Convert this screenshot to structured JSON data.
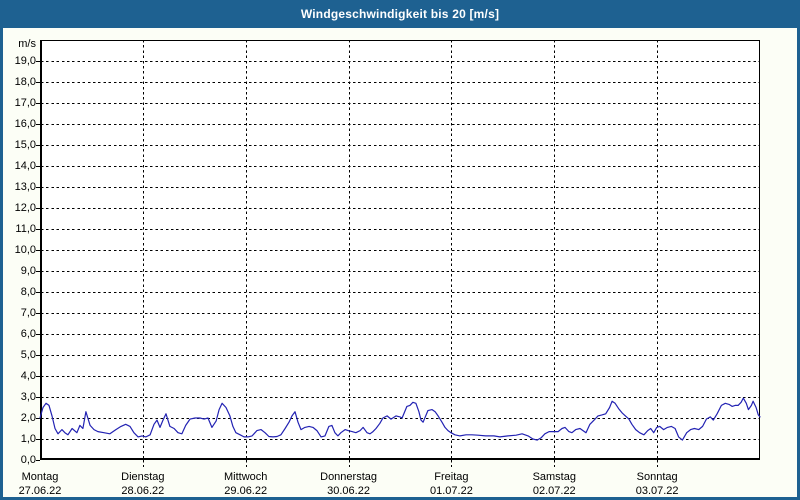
{
  "window": {
    "title": "Windgeschwindigkeit bis 20 [m/s]"
  },
  "colors": {
    "titlebar_bg": "#1e6191",
    "titlebar_text": "#ffffff",
    "frame": "#1e6191",
    "page_bg": "#fcfef6",
    "plot_bg": "#ffffff",
    "grid": "#000000",
    "axis": "#000000",
    "line": "#2323b3",
    "label_text": "#000000"
  },
  "y_axis": {
    "unit": "m/s",
    "min": 0,
    "max": 20,
    "tick_step": 1,
    "ticks": [
      {
        "value": 19,
        "label": "19,0"
      },
      {
        "value": 18,
        "label": "18,0"
      },
      {
        "value": 17,
        "label": "17,0"
      },
      {
        "value": 16,
        "label": "16,0"
      },
      {
        "value": 15,
        "label": "15,0"
      },
      {
        "value": 14,
        "label": "14,0"
      },
      {
        "value": 13,
        "label": "13,0"
      },
      {
        "value": 12,
        "label": "12,0"
      },
      {
        "value": 11,
        "label": "11,0"
      },
      {
        "value": 10,
        "label": "10,0"
      },
      {
        "value": 9,
        "label": "9,0"
      },
      {
        "value": 8,
        "label": "8,0"
      },
      {
        "value": 7,
        "label": "7,0"
      },
      {
        "value": 6,
        "label": "6,0"
      },
      {
        "value": 5,
        "label": "5,0"
      },
      {
        "value": 4,
        "label": "4,0"
      },
      {
        "value": 3,
        "label": "3,0"
      },
      {
        "value": 2,
        "label": "2,0"
      },
      {
        "value": 1,
        "label": "1,0"
      },
      {
        "value": 0,
        "label": "0,0"
      }
    ]
  },
  "x_axis": {
    "days": [
      {
        "name": "Montag",
        "date": "27.06.22"
      },
      {
        "name": "Dienstag",
        "date": "28.06.22"
      },
      {
        "name": "Mittwoch",
        "date": "29.06.22"
      },
      {
        "name": "Donnerstag",
        "date": "30.06.22"
      },
      {
        "name": "Freitag",
        "date": "01.07.22"
      },
      {
        "name": "Samstag",
        "date": "02.07.22"
      },
      {
        "name": "Sonntag",
        "date": "03.07.22"
      }
    ]
  },
  "chart_data": {
    "type": "line",
    "title": "Windgeschwindigkeit bis 20 [m/s]",
    "series_name": "Windgeschwindigkeit",
    "ylabel": "m/s",
    "ylim": [
      0,
      20
    ],
    "x_unit": "hours since Mon 27.06.22 00:00",
    "x_range": [
      0,
      168
    ],
    "grid": "dashed black, 1 m/s horizontal steps, vertical line per day",
    "legend": "none",
    "points": [
      [
        0,
        2.0
      ],
      [
        0.7,
        2.5
      ],
      [
        1.4,
        2.7
      ],
      [
        2.1,
        2.6
      ],
      [
        2.8,
        2.1
      ],
      [
        3.5,
        1.5
      ],
      [
        4.2,
        1.25
      ],
      [
        5.1,
        1.45
      ],
      [
        5.8,
        1.3
      ],
      [
        6.5,
        1.2
      ],
      [
        7.5,
        1.5
      ],
      [
        8.6,
        1.3
      ],
      [
        9.3,
        1.65
      ],
      [
        10,
        1.5
      ],
      [
        10.7,
        2.3
      ],
      [
        11.7,
        1.65
      ],
      [
        12.6,
        1.45
      ],
      [
        13.5,
        1.35
      ],
      [
        14.9,
        1.3
      ],
      [
        16.3,
        1.25
      ],
      [
        17.7,
        1.45
      ],
      [
        18.9,
        1.6
      ],
      [
        20,
        1.7
      ],
      [
        21,
        1.6
      ],
      [
        21.9,
        1.3
      ],
      [
        22.9,
        1.1
      ],
      [
        23.8,
        1.15
      ],
      [
        24.7,
        1.1
      ],
      [
        25.7,
        1.2
      ],
      [
        26.6,
        1.7
      ],
      [
        27.3,
        1.9
      ],
      [
        28,
        1.55
      ],
      [
        28.7,
        1.9
      ],
      [
        29.4,
        2.2
      ],
      [
        30.3,
        1.6
      ],
      [
        31.3,
        1.5
      ],
      [
        32.2,
        1.3
      ],
      [
        33.1,
        1.25
      ],
      [
        34,
        1.65
      ],
      [
        35,
        1.95
      ],
      [
        36.2,
        2.0
      ],
      [
        37.3,
        2.0
      ],
      [
        38.3,
        1.95
      ],
      [
        39.2,
        2.0
      ],
      [
        40.1,
        1.55
      ],
      [
        41.1,
        1.85
      ],
      [
        41.8,
        2.4
      ],
      [
        42.5,
        2.7
      ],
      [
        43.4,
        2.5
      ],
      [
        44.3,
        2.1
      ],
      [
        45,
        1.6
      ],
      [
        45.7,
        1.3
      ],
      [
        46.7,
        1.2
      ],
      [
        47.6,
        1.1
      ],
      [
        48.5,
        1.1
      ],
      [
        49.5,
        1.15
      ],
      [
        50.6,
        1.4
      ],
      [
        51.6,
        1.45
      ],
      [
        52.5,
        1.3
      ],
      [
        53.4,
        1.12
      ],
      [
        54.4,
        1.1
      ],
      [
        55.3,
        1.12
      ],
      [
        56.2,
        1.2
      ],
      [
        57.2,
        1.5
      ],
      [
        58.1,
        1.8
      ],
      [
        58.8,
        2.1
      ],
      [
        59.5,
        2.3
      ],
      [
        60.2,
        1.8
      ],
      [
        60.9,
        1.45
      ],
      [
        61.8,
        1.55
      ],
      [
        62.8,
        1.6
      ],
      [
        63.7,
        1.55
      ],
      [
        64.6,
        1.4
      ],
      [
        65.6,
        1.1
      ],
      [
        66.5,
        1.15
      ],
      [
        67.4,
        1.6
      ],
      [
        68.1,
        1.65
      ],
      [
        68.8,
        1.3
      ],
      [
        69.5,
        1.15
      ],
      [
        70.2,
        1.3
      ],
      [
        71.2,
        1.45
      ],
      [
        71.9,
        1.4
      ],
      [
        72.8,
        1.35
      ],
      [
        73.7,
        1.3
      ],
      [
        74.7,
        1.4
      ],
      [
        75.4,
        1.55
      ],
      [
        76.3,
        1.3
      ],
      [
        77,
        1.25
      ],
      [
        77.7,
        1.35
      ],
      [
        78.4,
        1.5
      ],
      [
        79.3,
        1.75
      ],
      [
        80,
        2.0
      ],
      [
        81,
        2.1
      ],
      [
        81.9,
        1.95
      ],
      [
        83.1,
        2.1
      ],
      [
        84,
        2.05
      ],
      [
        84.5,
        2.0
      ],
      [
        85.6,
        2.55
      ],
      [
        86.3,
        2.6
      ],
      [
        87,
        2.75
      ],
      [
        87.7,
        2.7
      ],
      [
        88.4,
        2.3
      ],
      [
        88.9,
        1.9
      ],
      [
        89.4,
        1.8
      ],
      [
        90.5,
        2.35
      ],
      [
        91.5,
        2.4
      ],
      [
        92.2,
        2.3
      ],
      [
        92.9,
        2.1
      ],
      [
        93.8,
        1.8
      ],
      [
        94.5,
        1.55
      ],
      [
        95.2,
        1.4
      ],
      [
        95.9,
        1.3
      ],
      [
        96.8,
        1.2
      ],
      [
        98,
        1.15
      ],
      [
        99.4,
        1.2
      ],
      [
        100.8,
        1.2
      ],
      [
        102.2,
        1.18
      ],
      [
        104,
        1.15
      ],
      [
        105.9,
        1.15
      ],
      [
        107.3,
        1.1
      ],
      [
        109.2,
        1.15
      ],
      [
        111.1,
        1.18
      ],
      [
        112.5,
        1.25
      ],
      [
        113.9,
        1.15
      ],
      [
        115,
        1.0
      ],
      [
        116,
        0.95
      ],
      [
        116.9,
        1.05
      ],
      [
        117.8,
        1.25
      ],
      [
        118.8,
        1.35
      ],
      [
        119.9,
        1.35
      ],
      [
        120.9,
        1.35
      ],
      [
        121.8,
        1.5
      ],
      [
        122.5,
        1.55
      ],
      [
        123.4,
        1.35
      ],
      [
        124.1,
        1.3
      ],
      [
        125,
        1.45
      ],
      [
        126,
        1.5
      ],
      [
        126.7,
        1.4
      ],
      [
        127.4,
        1.3
      ],
      [
        128.3,
        1.7
      ],
      [
        129.3,
        1.9
      ],
      [
        130.2,
        2.1
      ],
      [
        131.1,
        2.15
      ],
      [
        132,
        2.2
      ],
      [
        132.9,
        2.5
      ],
      [
        133.5,
        2.8
      ],
      [
        134.2,
        2.7
      ],
      [
        135,
        2.45
      ],
      [
        135.8,
        2.25
      ],
      [
        136.6,
        2.1
      ],
      [
        137.4,
        1.95
      ],
      [
        138.1,
        1.7
      ],
      [
        139,
        1.45
      ],
      [
        139.9,
        1.3
      ],
      [
        140.9,
        1.2
      ],
      [
        141.8,
        1.4
      ],
      [
        142.5,
        1.5
      ],
      [
        143.2,
        1.3
      ],
      [
        143.9,
        1.55
      ],
      [
        144.6,
        1.6
      ],
      [
        145.5,
        1.45
      ],
      [
        146.4,
        1.55
      ],
      [
        147.3,
        1.6
      ],
      [
        148.2,
        1.5
      ],
      [
        149,
        1.1
      ],
      [
        149.9,
        0.95
      ],
      [
        150.9,
        1.3
      ],
      [
        151.8,
        1.45
      ],
      [
        152.7,
        1.5
      ],
      [
        153.7,
        1.45
      ],
      [
        154.6,
        1.6
      ],
      [
        155.5,
        1.95
      ],
      [
        156.4,
        2.05
      ],
      [
        157.1,
        1.9
      ],
      [
        158,
        2.2
      ],
      [
        159,
        2.6
      ],
      [
        159.9,
        2.7
      ],
      [
        160.8,
        2.65
      ],
      [
        161.5,
        2.55
      ],
      [
        162.2,
        2.6
      ],
      [
        162.9,
        2.6
      ],
      [
        163.6,
        2.75
      ],
      [
        164.1,
        2.95
      ],
      [
        164.8,
        2.7
      ],
      [
        165.3,
        2.4
      ],
      [
        166,
        2.6
      ],
      [
        166.4,
        2.8
      ],
      [
        167.1,
        2.5
      ],
      [
        167.6,
        2.15
      ],
      [
        168,
        2.05
      ]
    ]
  }
}
